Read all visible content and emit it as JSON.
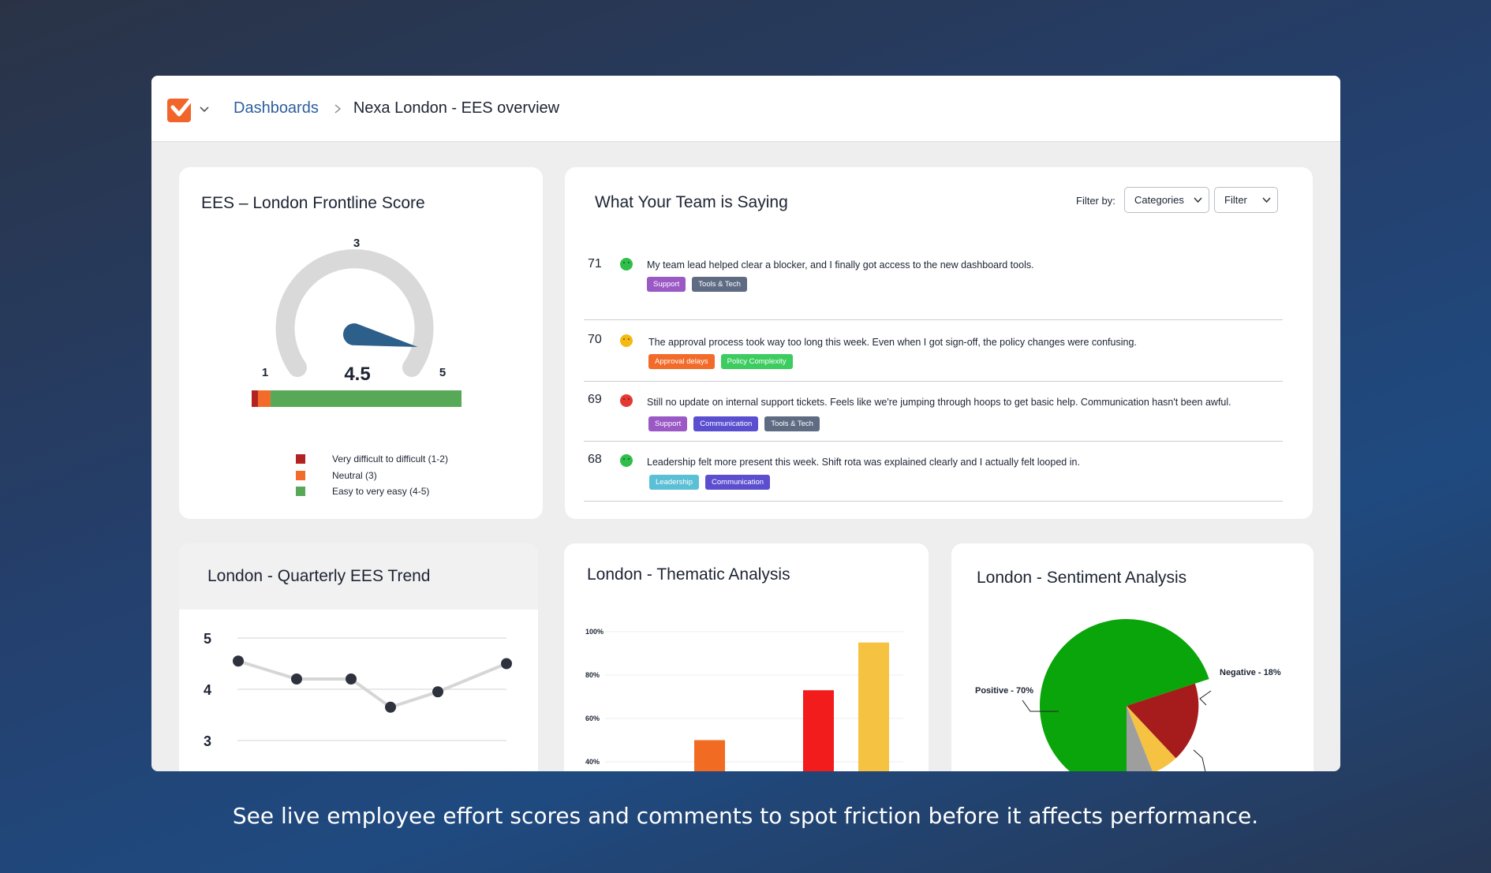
{
  "breadcrumb": {
    "dashboards": "Dashboards",
    "current": "Nexa London - EES overview"
  },
  "gauge_card": {
    "title": "EES – London Frontline Score",
    "tick_min": "1",
    "tick_mid": "3",
    "tick_max": "5",
    "score": "4.5",
    "score_value": 4.5,
    "distribution": [
      {
        "label": "Very difficult to difficult (1-2)",
        "color": "#b22222",
        "fraction": 0.03
      },
      {
        "label": "Neutral (3)",
        "color": "#f26b2a",
        "fraction": 0.06
      },
      {
        "label": "Easy to very easy (4-5)",
        "color": "#57a957",
        "fraction": 0.91
      }
    ]
  },
  "comments_card": {
    "title": "What Your Team is Saying",
    "filter_label": "Filter by:",
    "categories_select": "Categories",
    "filter_select": "Filter",
    "comments": [
      {
        "id": "71",
        "sentiment": "positive",
        "face_color": "#2fbf4a",
        "text": "My team lead helped clear a blocker, and I finally got access to the new dashboard tools.",
        "tags": [
          {
            "label": "Support",
            "color": "#9b59c6"
          },
          {
            "label": "Tools & Tech",
            "color": "#5e6b82"
          }
        ]
      },
      {
        "id": "70",
        "sentiment": "neutral",
        "face_color": "#f5b914",
        "text": "The approval process took way too long this week. Even when I got sign-off, the policy changes were confusing.",
        "tags": [
          {
            "label": "Approval delays",
            "color": "#f26b2a"
          },
          {
            "label": "Policy Complexity",
            "color": "#3ccc5f"
          }
        ]
      },
      {
        "id": "69",
        "sentiment": "negative",
        "face_color": "#e53935",
        "text": "Still no update on internal support tickets. Feels like we're jumping through hoops to get basic help. Communication hasn't been awful.",
        "tags": [
          {
            "label": "Support",
            "color": "#9b59c6"
          },
          {
            "label": "Communication",
            "color": "#5b4fcf"
          },
          {
            "label": "Tools & Tech",
            "color": "#5e6b82"
          }
        ]
      },
      {
        "id": "68",
        "sentiment": "positive",
        "face_color": "#2fbf4a",
        "text": "Leadership felt more present this week. Shift rota was explained clearly and I actually felt looped in.",
        "tags": [
          {
            "label": "Leadership",
            "color": "#5bbfd6"
          },
          {
            "label": "Communication",
            "color": "#5b4fcf"
          }
        ]
      }
    ]
  },
  "trend_card": {
    "title": "London - Quarterly EES Trend"
  },
  "thematic_card": {
    "title": "London - Thematic Analysis"
  },
  "sentiment_card": {
    "title": "London - Sentiment Analysis"
  },
  "chart_data": [
    {
      "type": "line",
      "title": "London - Quarterly EES Trend",
      "y_ticks": [
        "5",
        "4",
        "3"
      ],
      "x": [
        1,
        2,
        3,
        4,
        5,
        6
      ],
      "series": [
        {
          "values": [
            4.55,
            4.2,
            4.2,
            3.65,
            3.95,
            4.5
          ]
        }
      ],
      "ylim": [
        3,
        5
      ],
      "grid": true
    },
    {
      "type": "bar",
      "title": "London - Thematic Analysis",
      "y_ticks": [
        "100%",
        "80%",
        "60%",
        "40%"
      ],
      "ylim": [
        40,
        100
      ],
      "bars": [
        {
          "x_index": 1,
          "value": 50,
          "color": "#f26b22"
        },
        {
          "x_index": 3,
          "value": 73,
          "color": "#f21c1c"
        },
        {
          "x_index": 4,
          "value": 95,
          "color": "#f5c242"
        }
      ]
    },
    {
      "type": "pie",
      "title": "London - Sentiment Analysis",
      "slices": [
        {
          "label": "Positive - 70%",
          "value": 70,
          "color": "#0aa50a"
        },
        {
          "label": "Negative - 18%",
          "value": 18,
          "color": "#a61b1b"
        },
        {
          "label": "",
          "value": 6,
          "color": "#f5c242"
        },
        {
          "label": "",
          "value": 6,
          "color": "#9e9e9e"
        }
      ]
    }
  ],
  "caption": "See live employee effort scores and comments to spot friction before it affects performance."
}
